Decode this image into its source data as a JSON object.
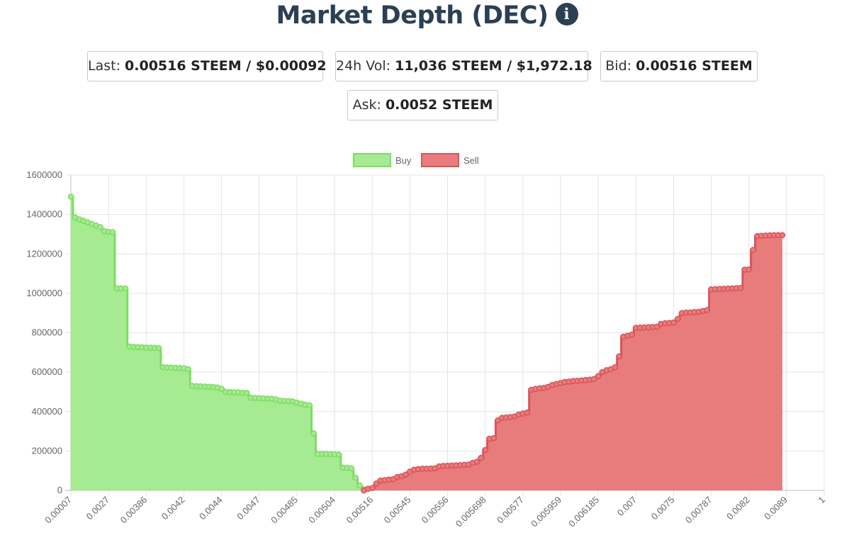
{
  "header": {
    "title": "Market Depth (DEC)",
    "info_icon": "info-circle-icon"
  },
  "stats": {
    "last": {
      "label": "Last:",
      "value": "0.00516 STEEM / $0.00092"
    },
    "volume": {
      "label": "24h Vol:",
      "value": "11,036 STEEM / $1,972.18"
    },
    "bid": {
      "label": "Bid:",
      "value": "0.00516 STEEM"
    },
    "ask": {
      "label": "Ask:",
      "value": "0.0052 STEEM"
    }
  },
  "colors": {
    "buy_fill": "#a6ea92",
    "buy_line": "#7ddd63",
    "sell_fill": "#e87c7c",
    "sell_line": "#d9545a",
    "grid": "#e4e4e4",
    "title": "#2b4055"
  },
  "chart_data": {
    "type": "area",
    "step": true,
    "legend_position": "top-center",
    "grid": true,
    "ylim": [
      0,
      1600000
    ],
    "y_ticks": [
      0,
      200000,
      400000,
      600000,
      800000,
      1000000,
      1200000,
      1400000,
      1600000
    ],
    "x_tick_labels": [
      "0.00007",
      "0.0027",
      "0.00386",
      "0.0042",
      "0.0044",
      "0.0047",
      "0.00485",
      "0.00504",
      "0.00516",
      "0.00545",
      "0.00556",
      "0.005698",
      "0.00577",
      "0.005959",
      "0.006185",
      "0.007",
      "0.0075",
      "0.00787",
      "0.0082",
      "0.0089",
      "1"
    ],
    "point_count": 181,
    "series": [
      {
        "name": "Buy",
        "start_index": 0,
        "values": [
          1490000,
          1385000,
          1375000,
          1368000,
          1360000,
          1352000,
          1344000,
          1336000,
          1315000,
          1312000,
          1310000,
          1025000,
          1025000,
          1025000,
          730000,
          728000,
          727000,
          726000,
          725000,
          724000,
          723000,
          722000,
          625000,
          624000,
          623000,
          622000,
          621000,
          620000,
          615000,
          530000,
          529000,
          528000,
          527000,
          526000,
          525000,
          522000,
          515000,
          500000,
          499000,
          498000,
          497000,
          496000,
          495000,
          470000,
          469000,
          468000,
          467000,
          466000,
          465000,
          462000,
          455000,
          454000,
          453000,
          452000,
          445000,
          440000,
          435000,
          432000,
          290000,
          185000,
          185000,
          185000,
          184000,
          183000,
          182000,
          115000,
          115000,
          112000,
          65000,
          25000,
          5000
        ]
      },
      {
        "name": "Sell",
        "start_index": 70,
        "values": [
          0,
          8000,
          12000,
          35000,
          50000,
          52000,
          55000,
          57000,
          68000,
          72000,
          80000,
          95000,
          105000,
          108000,
          110000,
          110000,
          111000,
          112000,
          122000,
          124000,
          125000,
          126000,
          127000,
          128000,
          130000,
          131000,
          140000,
          145000,
          165000,
          205000,
          262000,
          265000,
          355000,
          368000,
          370000,
          372000,
          375000,
          385000,
          390000,
          395000,
          510000,
          515000,
          518000,
          520000,
          525000,
          535000,
          540000,
          545000,
          550000,
          552000,
          555000,
          556000,
          558000,
          560000,
          562000,
          565000,
          580000,
          600000,
          610000,
          615000,
          625000,
          680000,
          780000,
          785000,
          790000,
          825000,
          826000,
          827000,
          828000,
          829000,
          830000,
          845000,
          848000,
          850000,
          852000,
          870000,
          900000,
          902000,
          903000,
          905000,
          906000,
          910000,
          915000,
          1020000,
          1021000,
          1022000,
          1023000,
          1024000,
          1025000,
          1026000,
          1027000,
          1120000,
          1121000,
          1220000,
          1290000,
          1292000,
          1293000,
          1294000,
          1295000,
          1295000,
          1295000
        ]
      }
    ]
  }
}
